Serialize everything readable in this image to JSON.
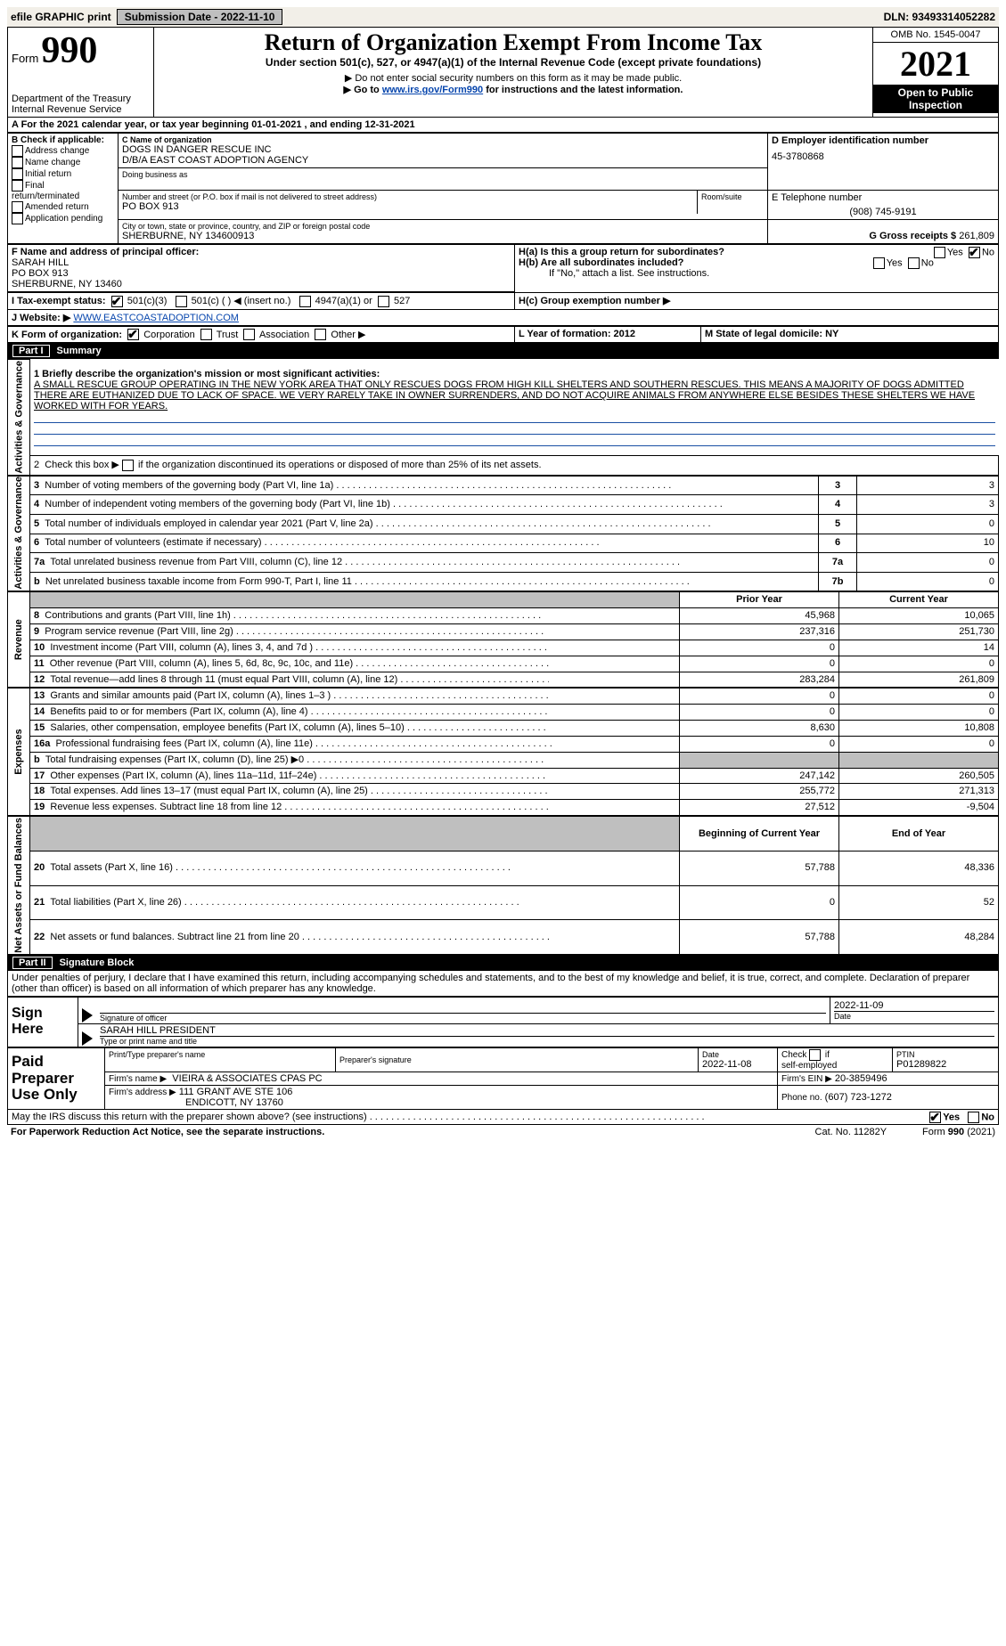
{
  "topbar": {
    "efile_label": "efile GRAPHIC print",
    "submission_label": "Submission Date - 2022-11-10",
    "dln_label": "DLN: 93493314052282"
  },
  "header": {
    "form_prefix": "Form",
    "form_no": "990",
    "title": "Return of Organization Exempt From Income Tax",
    "subtitle": "Under section 501(c), 527, or 4947(a)(1) of the Internal Revenue Code (except private foundations)",
    "note1": "▶ Do not enter social security numbers on this form as it may be made public.",
    "note2": "▶ Go to ",
    "note2_link": "www.irs.gov/Form990",
    "note2_tail": " for instructions and the latest information.",
    "dept": "Department of the Treasury\nInternal Revenue Service",
    "omb": "OMB No. 1545-0047",
    "year": "2021",
    "open": "Open to Public Inspection"
  },
  "A": {
    "line": "A For the 2021 calendar year, or tax year beginning 01-01-2021     , and ending 12-31-2021"
  },
  "B": {
    "label": "B Check if applicable:",
    "items": [
      "Address change",
      "Name change",
      "Initial return",
      "Final return/terminated",
      "Amended return",
      "Application pending"
    ]
  },
  "C": {
    "label_name": "C Name of organization",
    "name1": "DOGS IN DANGER RESCUE INC",
    "name2": "D/B/A EAST COAST ADOPTION AGENCY",
    "dba_label": "Doing business as",
    "street_label": "Number and street (or P.O. box if mail is not delivered to street address)",
    "room_label": "Room/suite",
    "street": "PO BOX 913",
    "city_label": "City or town, state or province, country, and ZIP or foreign postal code",
    "city": "SHERBURNE, NY  134600913"
  },
  "D": {
    "label": "D Employer identification number",
    "val": "45-3780868"
  },
  "E": {
    "label": "E Telephone number",
    "val": "(908) 745-9191"
  },
  "G": {
    "label": "G Gross receipts $",
    "val": "261,809"
  },
  "F": {
    "label": "F  Name and address of principal officer:",
    "lines": [
      "SARAH HILL",
      "PO BOX 913",
      "SHERBURNE, NY  13460"
    ]
  },
  "H": {
    "a_label": "H(a)  Is this a group return for subordinates?",
    "b_label": "H(b)  Are all subordinates included?",
    "b_note": "If \"No,\" attach a list. See instructions.",
    "c_label": "H(c)  Group exemption number ▶",
    "yes": "Yes",
    "no": "No"
  },
  "I": {
    "label": "I   Tax-exempt status:",
    "opts": [
      "501(c)(3)",
      "501(c) (  ) ◀ (insert no.)",
      "4947(a)(1) or",
      "527"
    ]
  },
  "J": {
    "label": "J   Website: ▶",
    "val": "WWW.EASTCOASTADOPTION.COM"
  },
  "K": {
    "label": "K Form of organization:",
    "opts": [
      "Corporation",
      "Trust",
      "Association",
      "Other ▶"
    ]
  },
  "L": {
    "label": "L Year of formation: 2012"
  },
  "M": {
    "label": "M State of legal domicile: NY"
  },
  "part1": {
    "header_num": "Part I",
    "header_txt": "Summary",
    "line1_label": "1  Briefly describe the organization's mission or most significant activities:",
    "line1_text": "A SMALL RESCUE GROUP OPERATING IN THE NEW YORK AREA THAT ONLY RESCUES DOGS FROM HIGH KILL SHELTERS AND SOUTHERN RESCUES. THIS MEANS A MAJORITY OF DOGS ADMITTED THERE ARE EUTHANIZED DUE TO LACK OF SPACE. WE VERY RARELY TAKE IN OWNER SURRENDERS, AND DO NOT ACQUIRE ANIMALS FROM ANYWHERE ELSE BESIDES THESE SHELTERS WE HAVE WORKED WITH FOR YEARS.",
    "line2": "2   Check this box ▶      if the organization discontinued its operations or disposed of more than 25% of its net assets.",
    "rows_ag": [
      {
        "n": "3",
        "t": "Number of voting members of the governing body (Part VI, line 1a)",
        "box": "3",
        "v": "3"
      },
      {
        "n": "4",
        "t": "Number of independent voting members of the governing body (Part VI, line 1b)",
        "box": "4",
        "v": "3"
      },
      {
        "n": "5",
        "t": "Total number of individuals employed in calendar year 2021 (Part V, line 2a)",
        "box": "5",
        "v": "0"
      },
      {
        "n": "6",
        "t": "Total number of volunteers (estimate if necessary)",
        "box": "6",
        "v": "10"
      },
      {
        "n": "7a",
        "t": "Total unrelated business revenue from Part VIII, column (C), line 12",
        "box": "7a",
        "v": "0"
      },
      {
        "n": "b",
        "t": "Net unrelated business taxable income from Form 990-T, Part I, line 11",
        "box": "7b",
        "v": "0"
      }
    ],
    "col_prior": "Prior Year",
    "col_curr": "Current Year",
    "rows_rev": [
      {
        "n": "8",
        "t": "Contributions and grants (Part VIII, line 1h)",
        "p": "45,968",
        "c": "10,065"
      },
      {
        "n": "9",
        "t": "Program service revenue (Part VIII, line 2g)",
        "p": "237,316",
        "c": "251,730"
      },
      {
        "n": "10",
        "t": "Investment income (Part VIII, column (A), lines 3, 4, and 7d )",
        "p": "0",
        "c": "14"
      },
      {
        "n": "11",
        "t": "Other revenue (Part VIII, column (A), lines 5, 6d, 8c, 9c, 10c, and 11e)",
        "p": "0",
        "c": "0"
      },
      {
        "n": "12",
        "t": "Total revenue—add lines 8 through 11 (must equal Part VIII, column (A), line 12)",
        "p": "283,284",
        "c": "261,809"
      }
    ],
    "rows_exp": [
      {
        "n": "13",
        "t": "Grants and similar amounts paid (Part IX, column (A), lines 1–3 )",
        "p": "0",
        "c": "0"
      },
      {
        "n": "14",
        "t": "Benefits paid to or for members (Part IX, column (A), line 4)",
        "p": "0",
        "c": "0"
      },
      {
        "n": "15",
        "t": "Salaries, other compensation, employee benefits (Part IX, column (A), lines 5–10)",
        "p": "8,630",
        "c": "10,808"
      },
      {
        "n": "16a",
        "t": "Professional fundraising fees (Part IX, column (A), line 11e)",
        "p": "0",
        "c": "0"
      },
      {
        "n": "b",
        "t": "Total fundraising expenses (Part IX, column (D), line 25) ▶0",
        "p": "",
        "c": "",
        "shade": true
      },
      {
        "n": "17",
        "t": "Other expenses (Part IX, column (A), lines 11a–11d, 11f–24e)",
        "p": "247,142",
        "c": "260,505"
      },
      {
        "n": "18",
        "t": "Total expenses. Add lines 13–17 (must equal Part IX, column (A), line 25)",
        "p": "255,772",
        "c": "271,313"
      },
      {
        "n": "19",
        "t": "Revenue less expenses. Subtract line 18 from line 12",
        "p": "27,512",
        "c": "-9,504"
      }
    ],
    "col_beg": "Beginning of Current Year",
    "col_end": "End of Year",
    "rows_na": [
      {
        "n": "20",
        "t": "Total assets (Part X, line 16)",
        "p": "57,788",
        "c": "48,336"
      },
      {
        "n": "21",
        "t": "Total liabilities (Part X, line 26)",
        "p": "0",
        "c": "52"
      },
      {
        "n": "22",
        "t": "Net assets or fund balances. Subtract line 21 from line 20",
        "p": "57,788",
        "c": "48,284"
      }
    ]
  },
  "part2": {
    "header_num": "Part II",
    "header_txt": "Signature Block",
    "perjury": "Under penalties of perjury, I declare that I have examined this return, including accompanying schedules and statements, and to the best of my knowledge and belief, it is true, correct, and complete. Declaration of preparer (other than officer) is based on all information of which preparer has any knowledge.",
    "sign_here": "Sign Here",
    "sig_of_officer": "Signature of officer",
    "sig_date": "2022-11-09",
    "date_lbl": "Date",
    "officer_name": "SARAH HILL  PRESIDENT",
    "type_name_lbl": "Type or print name and title",
    "paid": "Paid Preparer Use Only",
    "pp_name_lbl": "Print/Type preparer's name",
    "pp_sig_lbl": "Preparer's signature",
    "pp_date_lbl": "Date",
    "pp_date": "2022-11-08",
    "pp_check_lbl": "Check         if self-employed",
    "ptin_lbl": "PTIN",
    "ptin": "P01289822",
    "firm_name_lbl": "Firm's name      ▶",
    "firm_name": "VIEIRA & ASSOCIATES CPAS PC",
    "firm_ein_lbl": "Firm's EIN ▶",
    "firm_ein": "20-3859496",
    "firm_addr_lbl": "Firm's address ▶",
    "firm_addr1": "111 GRANT AVE STE 106",
    "firm_addr2": "ENDICOTT, NY  13760",
    "firm_phone_lbl": "Phone no.",
    "firm_phone": "(607) 723-1272",
    "may_irs": "May the IRS discuss this return with the preparer shown above? (see instructions)",
    "yes": "Yes",
    "no": "No"
  },
  "footer": {
    "pra": "For Paperwork Reduction Act Notice, see the separate instructions.",
    "cat": "Cat. No. 11282Y",
    "form": "Form 990 (2021)"
  },
  "side_labels": {
    "ag": "Activities & Governance",
    "rev": "Revenue",
    "exp": "Expenses",
    "na": "Net Assets or Fund Balances"
  }
}
